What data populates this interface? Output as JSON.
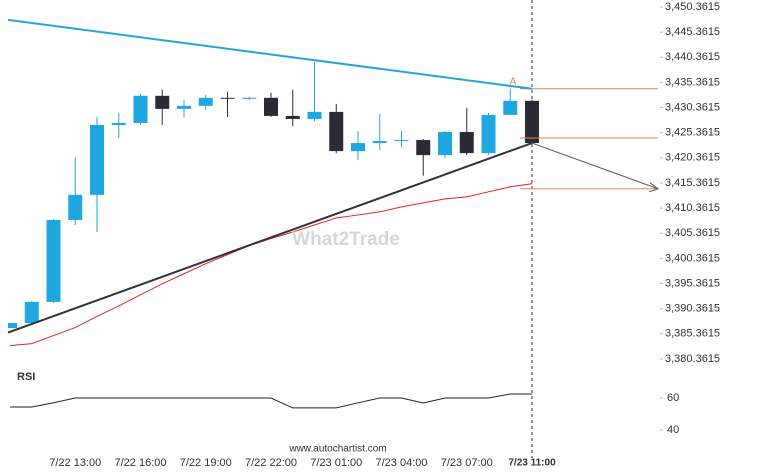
{
  "chart_data": [
    {
      "type": "candlestick",
      "categories": [
        null,
        null,
        null,
        "7/22 13:00",
        null,
        null,
        "7/22 16:00",
        null,
        null,
        "7/22 19:00",
        null,
        null,
        "7/22 22:00",
        null,
        null,
        "7/23 01:00",
        null,
        null,
        "7/23 04:00",
        null,
        null,
        "7/23 07:00",
        null,
        null,
        "7/23 11:00"
      ],
      "open": [
        3386.5,
        3387.5,
        3391.7,
        3408.0,
        3413.0,
        3426.9,
        3427.3,
        3432.7,
        3430.1,
        3430.7,
        3432.3,
        3432.1,
        3432.3,
        3428.7,
        3428.1,
        3429.5,
        3421.7,
        3423.3,
        3423.7,
        3423.9,
        3420.9,
        3425.5,
        3421.3,
        3428.9,
        3431.7
      ],
      "high": [
        3387.5,
        3391.9,
        3408.2,
        3420.5,
        3428.5,
        3429.3,
        3433.1,
        3433.9,
        3431.9,
        3432.9,
        3433.5,
        3432.5,
        3433.3,
        3433.9,
        3439.4,
        3431.1,
        3425.7,
        3429.1,
        3425.7,
        3424.1,
        3425.7,
        3430.3,
        3429.3,
        3434.1,
        3431.9
      ],
      "low": [
        3386.5,
        3387.3,
        3391.5,
        3407.0,
        3405.6,
        3424.3,
        3426.9,
        3426.9,
        3428.5,
        3429.9,
        3428.5,
        3431.9,
        3428.5,
        3426.7,
        3427.7,
        3421.3,
        3419.9,
        3421.9,
        3422.5,
        3416.8,
        3420.3,
        3420.9,
        3420.9,
        3428.9,
        3423.3
      ],
      "close": [
        3387.5,
        3391.7,
        3408.0,
        3413.0,
        3426.9,
        3427.3,
        3432.7,
        3430.1,
        3430.7,
        3432.3,
        3432.1,
        3432.3,
        3428.7,
        3428.1,
        3429.5,
        3421.7,
        3423.3,
        3423.7,
        3423.9,
        3420.9,
        3425.5,
        3421.3,
        3428.9,
        3431.7,
        3423.3
      ],
      "up_color": "#1ea7e1",
      "down_color": "#2b2b36",
      "moving_average": {
        "color": "#e02424",
        "values": [
          3383.0,
          3383.4,
          3385.0,
          3386.6,
          3388.8,
          3390.9,
          3393.1,
          3395.3,
          3397.3,
          3399.3,
          3401.1,
          3402.9,
          3404.3,
          3405.6,
          3407.0,
          3408.4,
          3409.0,
          3409.6,
          3410.6,
          3411.4,
          3412.2,
          3412.6,
          3413.6,
          3414.6,
          3415.2
        ]
      },
      "trendlines": [
        {
          "color": "#29a3dc",
          "start": 3447.8,
          "end": 3434.1
        },
        {
          "color": "#333333",
          "start": 3385.6,
          "end": 3423.3
        }
      ],
      "levels": [
        3434.1,
        3424.3,
        3414.2
      ],
      "level_color": "#e8834d",
      "annotation": "A",
      "watermark": "What2Trade",
      "source": "www.autochartist.com",
      "ylim": [
        3376.3615,
        3451.3615
      ],
      "yticks": [
        {
          "value": 3380.3615,
          "label": "3,380.3615"
        },
        {
          "value": 3385.3615,
          "label": "3,385.3615"
        },
        {
          "value": 3390.3615,
          "label": "3,390.3615"
        },
        {
          "value": 3395.3615,
          "label": "3,395.3615"
        },
        {
          "value": 3400.3615,
          "label": "3,400.3615"
        },
        {
          "value": 3405.3615,
          "label": "3,405.3615"
        },
        {
          "value": 3410.3615,
          "label": "3,410.3615"
        },
        {
          "value": 3415.3615,
          "label": "3,415.3615"
        },
        {
          "value": 3420.3615,
          "label": "3,420.3615"
        },
        {
          "value": 3425.3615,
          "label": "3,425.3615"
        },
        {
          "value": 3430.3615,
          "label": "3,430.3615"
        },
        {
          "value": 3435.3615,
          "label": "3,435.3615"
        },
        {
          "value": 3440.3615,
          "label": "3,440.3615"
        },
        {
          "value": 3445.3615,
          "label": "3,445.3615"
        },
        {
          "value": 3450.3615,
          "label": "3,450.3615"
        }
      ]
    },
    {
      "type": "line",
      "title": "RSI",
      "color": "#222222",
      "values": [
        54.4,
        54.4,
        57,
        60,
        60,
        60,
        60,
        60,
        60,
        60,
        60,
        60,
        60,
        53.8,
        53.8,
        53.8,
        57,
        60,
        60,
        56.9,
        60,
        60,
        60,
        62.5,
        62.5
      ],
      "ylim": [
        30,
        70
      ],
      "yticks": [
        40,
        60
      ]
    }
  ]
}
